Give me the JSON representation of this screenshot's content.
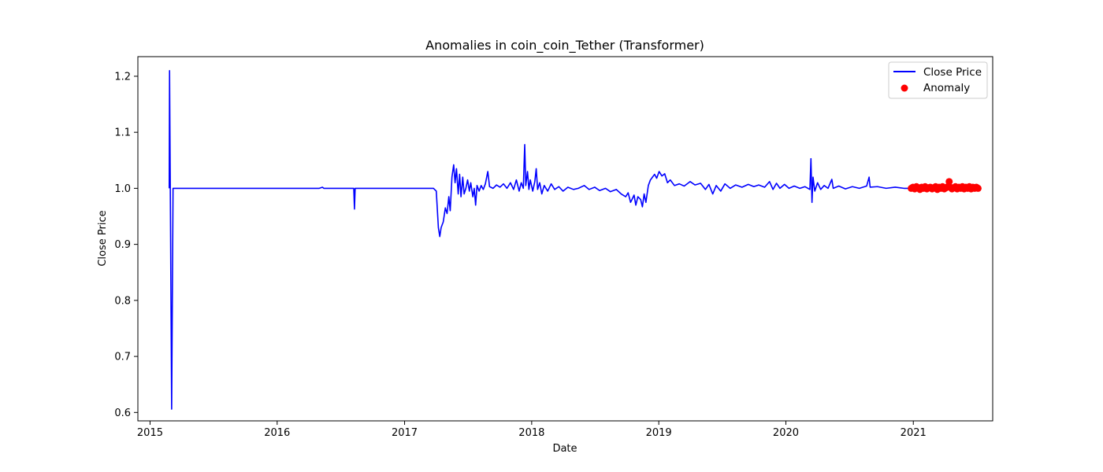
{
  "chart_data": {
    "type": "line",
    "title": "Anomalies in coin_coin_Tether (Transformer)",
    "xlabel": "Date",
    "ylabel": "Close Price",
    "xlim": [
      "2014-11-27",
      "2021-08-17"
    ],
    "ylim": [
      0.585,
      1.235
    ],
    "x_ticks": [
      "2015",
      "2016",
      "2017",
      "2018",
      "2019",
      "2020",
      "2021"
    ],
    "y_ticks": [
      "0.6",
      "0.7",
      "0.8",
      "0.9",
      "1.0",
      "1.1",
      "1.2"
    ],
    "grid": false,
    "legend": {
      "placement": "top-right",
      "entries": [
        "Close Price",
        "Anomaly"
      ]
    },
    "colors": {
      "line": "#0000ff",
      "anomaly": "#ff0000"
    },
    "series": [
      {
        "name": "Close Price",
        "kind": "line",
        "points": [
          [
            "2015-02-25",
            1.0
          ],
          [
            "2015-02-26",
            1.21
          ],
          [
            "2015-03-04",
            0.606
          ],
          [
            "2015-03-08",
            1.0
          ],
          [
            "2015-06-01",
            1.0
          ],
          [
            "2016-01-01",
            1.0
          ],
          [
            "2016-05-01",
            1.0
          ],
          [
            "2016-05-10",
            1.002
          ],
          [
            "2016-05-14",
            1.0
          ],
          [
            "2016-08-08",
            1.0
          ],
          [
            "2016-08-10",
            0.963
          ],
          [
            "2016-08-12",
            1.0
          ],
          [
            "2016-08-20",
            1.0
          ],
          [
            "2016-12-01",
            1.0
          ],
          [
            "2017-03-01",
            1.0
          ],
          [
            "2017-03-25",
            1.0
          ],
          [
            "2017-04-02",
            0.995
          ],
          [
            "2017-04-08",
            0.93
          ],
          [
            "2017-04-12",
            0.914
          ],
          [
            "2017-04-16",
            0.93
          ],
          [
            "2017-04-22",
            0.94
          ],
          [
            "2017-04-28",
            0.965
          ],
          [
            "2017-05-03",
            0.955
          ],
          [
            "2017-05-08",
            0.985
          ],
          [
            "2017-05-12",
            0.96
          ],
          [
            "2017-05-17",
            1.02
          ],
          [
            "2017-05-22",
            1.042
          ],
          [
            "2017-05-26",
            1.01
          ],
          [
            "2017-05-30",
            1.035
          ],
          [
            "2017-06-04",
            0.99
          ],
          [
            "2017-06-08",
            1.025
          ],
          [
            "2017-06-12",
            0.985
          ],
          [
            "2017-06-17",
            1.02
          ],
          [
            "2017-06-21",
            0.99
          ],
          [
            "2017-06-26",
            1.0
          ],
          [
            "2017-07-01",
            1.015
          ],
          [
            "2017-07-06",
            0.995
          ],
          [
            "2017-07-10",
            1.01
          ],
          [
            "2017-07-16",
            0.985
          ],
          [
            "2017-07-20",
            1.0
          ],
          [
            "2017-07-24",
            0.97
          ],
          [
            "2017-07-28",
            1.005
          ],
          [
            "2017-08-03",
            0.995
          ],
          [
            "2017-08-09",
            1.005
          ],
          [
            "2017-08-15",
            0.998
          ],
          [
            "2017-08-21",
            1.008
          ],
          [
            "2017-08-28",
            1.03
          ],
          [
            "2017-09-02",
            1.003
          ],
          [
            "2017-09-12",
            1.0
          ],
          [
            "2017-09-22",
            1.006
          ],
          [
            "2017-10-02",
            1.002
          ],
          [
            "2017-10-12",
            1.008
          ],
          [
            "2017-10-22",
            1.0
          ],
          [
            "2017-11-01",
            1.01
          ],
          [
            "2017-11-10",
            0.998
          ],
          [
            "2017-11-18",
            1.015
          ],
          [
            "2017-11-26",
            0.995
          ],
          [
            "2017-12-02",
            1.01
          ],
          [
            "2017-12-08",
            1.0
          ],
          [
            "2017-12-12",
            1.078
          ],
          [
            "2017-12-15",
            1.005
          ],
          [
            "2017-12-20",
            1.03
          ],
          [
            "2017-12-24",
            0.998
          ],
          [
            "2017-12-28",
            1.015
          ],
          [
            "2018-01-04",
            0.995
          ],
          [
            "2018-01-10",
            1.012
          ],
          [
            "2018-01-14",
            1.035
          ],
          [
            "2018-01-18",
            0.998
          ],
          [
            "2018-01-24",
            1.01
          ],
          [
            "2018-01-30",
            0.99
          ],
          [
            "2018-02-06",
            1.005
          ],
          [
            "2018-02-16",
            0.995
          ],
          [
            "2018-02-26",
            1.008
          ],
          [
            "2018-03-08",
            0.998
          ],
          [
            "2018-03-20",
            1.003
          ],
          [
            "2018-04-01",
            0.995
          ],
          [
            "2018-04-15",
            1.002
          ],
          [
            "2018-05-01",
            0.998
          ],
          [
            "2018-05-15",
            1.0
          ],
          [
            "2018-06-01",
            1.005
          ],
          [
            "2018-06-15",
            0.998
          ],
          [
            "2018-07-01",
            1.002
          ],
          [
            "2018-07-15",
            0.996
          ],
          [
            "2018-08-01",
            1.0
          ],
          [
            "2018-08-15",
            0.994
          ],
          [
            "2018-09-01",
            0.998
          ],
          [
            "2018-09-15",
            0.99
          ],
          [
            "2018-09-28",
            0.985
          ],
          [
            "2018-10-05",
            0.992
          ],
          [
            "2018-10-12",
            0.975
          ],
          [
            "2018-10-16",
            0.98
          ],
          [
            "2018-10-22",
            0.988
          ],
          [
            "2018-10-27",
            0.97
          ],
          [
            "2018-11-02",
            0.985
          ],
          [
            "2018-11-10",
            0.98
          ],
          [
            "2018-11-15",
            0.967
          ],
          [
            "2018-11-20",
            0.99
          ],
          [
            "2018-11-25",
            0.975
          ],
          [
            "2018-12-02",
            1.005
          ],
          [
            "2018-12-08",
            1.015
          ],
          [
            "2018-12-14",
            1.02
          ],
          [
            "2018-12-20",
            1.025
          ],
          [
            "2018-12-26",
            1.018
          ],
          [
            "2019-01-02",
            1.03
          ],
          [
            "2019-01-10",
            1.022
          ],
          [
            "2019-01-18",
            1.026
          ],
          [
            "2019-01-26",
            1.01
          ],
          [
            "2019-02-03",
            1.015
          ],
          [
            "2019-02-15",
            1.005
          ],
          [
            "2019-03-01",
            1.008
          ],
          [
            "2019-03-15",
            1.004
          ],
          [
            "2019-04-01",
            1.012
          ],
          [
            "2019-04-15",
            1.006
          ],
          [
            "2019-05-01",
            1.009
          ],
          [
            "2019-05-15",
            0.998
          ],
          [
            "2019-05-25",
            1.007
          ],
          [
            "2019-06-05",
            0.99
          ],
          [
            "2019-06-15",
            1.005
          ],
          [
            "2019-06-28",
            0.995
          ],
          [
            "2019-07-10",
            1.008
          ],
          [
            "2019-07-25",
            1.0
          ],
          [
            "2019-08-10",
            1.006
          ],
          [
            "2019-08-28",
            1.002
          ],
          [
            "2019-09-15",
            1.007
          ],
          [
            "2019-10-01",
            1.003
          ],
          [
            "2019-10-15",
            1.006
          ],
          [
            "2019-11-01",
            1.002
          ],
          [
            "2019-11-15",
            1.012
          ],
          [
            "2019-11-25",
            0.998
          ],
          [
            "2019-12-05",
            1.009
          ],
          [
            "2019-12-15",
            1.0
          ],
          [
            "2019-12-28",
            1.007
          ],
          [
            "2020-01-10",
            1.0
          ],
          [
            "2020-01-25",
            1.004
          ],
          [
            "2020-02-10",
            1.0
          ],
          [
            "2020-02-25",
            1.003
          ],
          [
            "2020-03-10",
            0.998
          ],
          [
            "2020-03-13",
            1.053
          ],
          [
            "2020-03-16",
            0.975
          ],
          [
            "2020-03-19",
            1.02
          ],
          [
            "2020-03-24",
            0.995
          ],
          [
            "2020-04-01",
            1.01
          ],
          [
            "2020-04-10",
            0.998
          ],
          [
            "2020-04-20",
            1.005
          ],
          [
            "2020-05-01",
            1.0
          ],
          [
            "2020-05-12",
            1.016
          ],
          [
            "2020-05-16",
            1.0
          ],
          [
            "2020-06-01",
            1.004
          ],
          [
            "2020-06-20",
            0.999
          ],
          [
            "2020-07-10",
            1.003
          ],
          [
            "2020-07-30",
            1.0
          ],
          [
            "2020-08-20",
            1.004
          ],
          [
            "2020-08-27",
            1.02
          ],
          [
            "2020-08-30",
            1.002
          ],
          [
            "2020-09-20",
            1.003
          ],
          [
            "2020-10-15",
            1.0
          ],
          [
            "2020-11-10",
            1.002
          ],
          [
            "2020-12-05",
            1.0
          ],
          [
            "2020-12-20",
            1.0
          ],
          [
            "2021-01-10",
            1.001
          ],
          [
            "2021-02-10",
            1.0
          ],
          [
            "2021-03-10",
            1.001
          ],
          [
            "2021-04-10",
            1.002
          ],
          [
            "2021-05-10",
            1.0
          ],
          [
            "2021-06-10",
            1.001
          ],
          [
            "2021-07-06",
            1.0
          ]
        ]
      },
      {
        "name": "Anomaly",
        "kind": "scatter",
        "points": [
          [
            "2020-12-26",
            1.0
          ],
          [
            "2020-12-31",
            1.002
          ],
          [
            "2021-01-05",
            0.999
          ],
          [
            "2021-01-10",
            1.003
          ],
          [
            "2021-01-15",
            1.001
          ],
          [
            "2021-01-20",
            0.998
          ],
          [
            "2021-01-25",
            1.002
          ],
          [
            "2021-01-30",
            1.0
          ],
          [
            "2021-02-04",
            1.003
          ],
          [
            "2021-02-09",
            0.999
          ],
          [
            "2021-02-14",
            1.001
          ],
          [
            "2021-02-19",
            1.002
          ],
          [
            "2021-02-24",
            0.999
          ],
          [
            "2021-03-01",
            1.001
          ],
          [
            "2021-03-06",
            1.003
          ],
          [
            "2021-03-11",
            0.998
          ],
          [
            "2021-03-16",
            1.002
          ],
          [
            "2021-03-21",
            1.0
          ],
          [
            "2021-03-26",
            1.003
          ],
          [
            "2021-03-31",
            0.999
          ],
          [
            "2021-04-05",
            1.001
          ],
          [
            "2021-04-10",
            1.003
          ],
          [
            "2021-04-14",
            1.012
          ],
          [
            "2021-04-17",
            1.002
          ],
          [
            "2021-04-22",
            0.999
          ],
          [
            "2021-04-27",
            1.001
          ],
          [
            "2021-05-02",
            1.003
          ],
          [
            "2021-05-07",
            0.999
          ],
          [
            "2021-05-12",
            1.002
          ],
          [
            "2021-05-17",
            1.0
          ],
          [
            "2021-05-22",
            1.003
          ],
          [
            "2021-05-27",
            0.999
          ],
          [
            "2021-06-01",
            1.002
          ],
          [
            "2021-06-06",
            1.0
          ],
          [
            "2021-06-11",
            1.003
          ],
          [
            "2021-06-16",
            0.999
          ],
          [
            "2021-06-21",
            1.002
          ],
          [
            "2021-06-26",
            1.0
          ],
          [
            "2021-07-01",
            1.002
          ],
          [
            "2021-07-06",
            1.0
          ]
        ]
      }
    ]
  }
}
